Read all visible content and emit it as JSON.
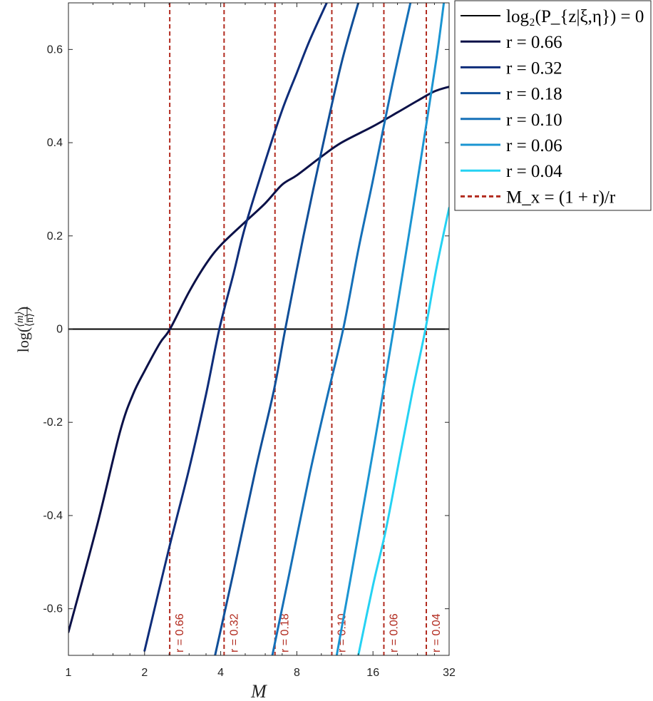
{
  "chart_data": {
    "type": "line",
    "xlabel": "M",
    "ylabel": "log(⟨m⟩/⟨n⟩)",
    "x_scale": "log2",
    "xlim": [
      1,
      32
    ],
    "ylim": [
      -0.7,
      0.7
    ],
    "x_ticks": [
      1,
      2,
      4,
      8,
      16,
      32
    ],
    "x_tick_labels": [
      "1",
      "2",
      "4",
      "8",
      "16",
      "32"
    ],
    "y_ticks": [
      -0.6,
      -0.4,
      -0.2,
      0,
      0.2,
      0.4,
      0.6
    ],
    "y_tick_labels": [
      "-0.6",
      "-0.4",
      "-0.2",
      "0",
      "0.2",
      "0.4",
      "0.6"
    ],
    "grid": false,
    "legend_position": "outside-top-right",
    "reference_line": {
      "label": "log₂(P_{z|ξ,η}) = 0",
      "y": 0,
      "color": "#000000"
    },
    "series": [
      {
        "name": "r = 0.66",
        "color": "#0b1148",
        "points": [
          [
            1,
            -0.65
          ],
          [
            1.3,
            -0.42
          ],
          [
            1.6,
            -0.22
          ],
          [
            1.8,
            -0.14
          ],
          [
            2,
            -0.09
          ],
          [
            2.3,
            -0.03
          ],
          [
            2.52,
            0.0
          ],
          [
            3,
            0.08
          ],
          [
            3.5,
            0.14
          ],
          [
            4,
            0.18
          ],
          [
            5,
            0.23
          ],
          [
            6,
            0.27
          ],
          [
            7,
            0.31
          ],
          [
            8,
            0.33
          ],
          [
            10,
            0.37
          ],
          [
            12,
            0.4
          ],
          [
            16,
            0.435
          ],
          [
            20,
            0.465
          ],
          [
            24,
            0.49
          ],
          [
            28,
            0.51
          ],
          [
            32,
            0.52
          ]
        ]
      },
      {
        "name": "r = 0.32",
        "color": "#0e2d7a",
        "points": [
          [
            2,
            -0.69
          ],
          [
            2.5,
            -0.47
          ],
          [
            3,
            -0.3
          ],
          [
            3.5,
            -0.14
          ],
          [
            3.95,
            0.0
          ],
          [
            4.5,
            0.12
          ],
          [
            5,
            0.22
          ],
          [
            6,
            0.36
          ],
          [
            7,
            0.47
          ],
          [
            8,
            0.55
          ],
          [
            9,
            0.62
          ],
          [
            10.5,
            0.7
          ]
        ]
      },
      {
        "name": "r = 0.18",
        "color": "#104f99",
        "points": [
          [
            3.8,
            -0.7
          ],
          [
            4.5,
            -0.52
          ],
          [
            5.5,
            -0.3
          ],
          [
            6.5,
            -0.13
          ],
          [
            7.2,
            0.0
          ],
          [
            8.5,
            0.2
          ],
          [
            10,
            0.38
          ],
          [
            12,
            0.57
          ],
          [
            14,
            0.7
          ]
        ]
      },
      {
        "name": "r = 0.10",
        "color": "#1570b8",
        "points": [
          [
            6.4,
            -0.7
          ],
          [
            7.5,
            -0.52
          ],
          [
            9,
            -0.31
          ],
          [
            10.5,
            -0.15
          ],
          [
            12.2,
            0.0
          ],
          [
            14,
            0.17
          ],
          [
            16,
            0.32
          ],
          [
            19,
            0.52
          ],
          [
            22.5,
            0.7
          ]
        ]
      },
      {
        "name": "r = 0.06",
        "color": "#1b95d2",
        "points": [
          [
            11.5,
            -0.7
          ],
          [
            13,
            -0.54
          ],
          [
            15,
            -0.35
          ],
          [
            17,
            -0.18
          ],
          [
            19.3,
            0.0
          ],
          [
            22,
            0.19
          ],
          [
            25,
            0.38
          ],
          [
            28.5,
            0.58
          ],
          [
            30.5,
            0.7
          ]
        ]
      },
      {
        "name": "r = 0.04",
        "color": "#25d2f3",
        "points": [
          [
            14,
            -0.7
          ],
          [
            16,
            -0.55
          ],
          [
            18,
            -0.43
          ],
          [
            20.5,
            -0.27
          ],
          [
            23,
            -0.13
          ],
          [
            25.8,
            0.0
          ],
          [
            28.5,
            0.13
          ],
          [
            32,
            0.26
          ]
        ]
      }
    ],
    "threshold_lines": {
      "legend_label": "M_x = (1 + r)/r",
      "color": "#b22b1f",
      "lines": [
        {
          "x": 2.515,
          "label": "r = 0.66"
        },
        {
          "x": 4.125,
          "label": "r = 0.32"
        },
        {
          "x": 6.556,
          "label": "r = 0.18"
        },
        {
          "x": 11.0,
          "label": "r = 0.10"
        },
        {
          "x": 17.667,
          "label": "r = 0.06"
        },
        {
          "x": 26.0,
          "label": "r = 0.04"
        }
      ]
    }
  }
}
